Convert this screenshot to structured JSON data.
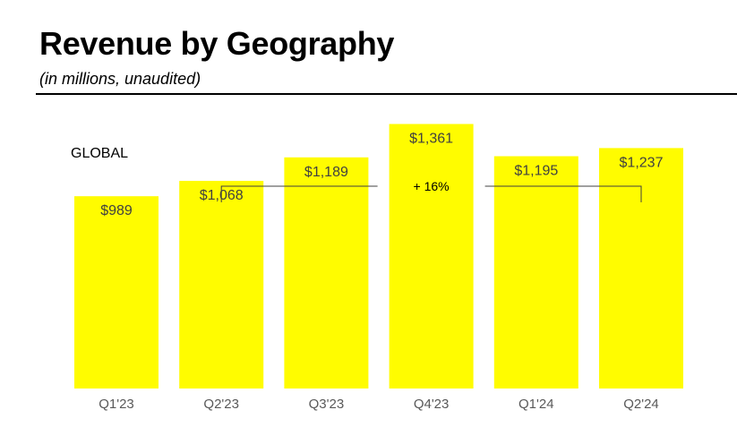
{
  "header": {
    "title": "Revenue by Geography",
    "subtitle": "(in millions, unaudited)"
  },
  "chart_data": {
    "type": "bar",
    "title": "GLOBAL",
    "categories": [
      "Q1'23",
      "Q2'23",
      "Q3'23",
      "Q4'23",
      "Q1'24",
      "Q2'24"
    ],
    "values": [
      989,
      1068,
      1189,
      1361,
      1195,
      1237
    ],
    "data_labels": [
      "$989",
      "$1,068",
      "$1,189",
      "$1,361",
      "$1,195",
      "$1,237"
    ],
    "annotation": {
      "text": "+ 16%",
      "from_category": "Q2'23",
      "to_category": "Q2'24"
    },
    "xlabel": "",
    "ylabel": "",
    "ylim": [
      0,
      1400
    ],
    "grid": false,
    "bar_color": "#FFFC00"
  }
}
